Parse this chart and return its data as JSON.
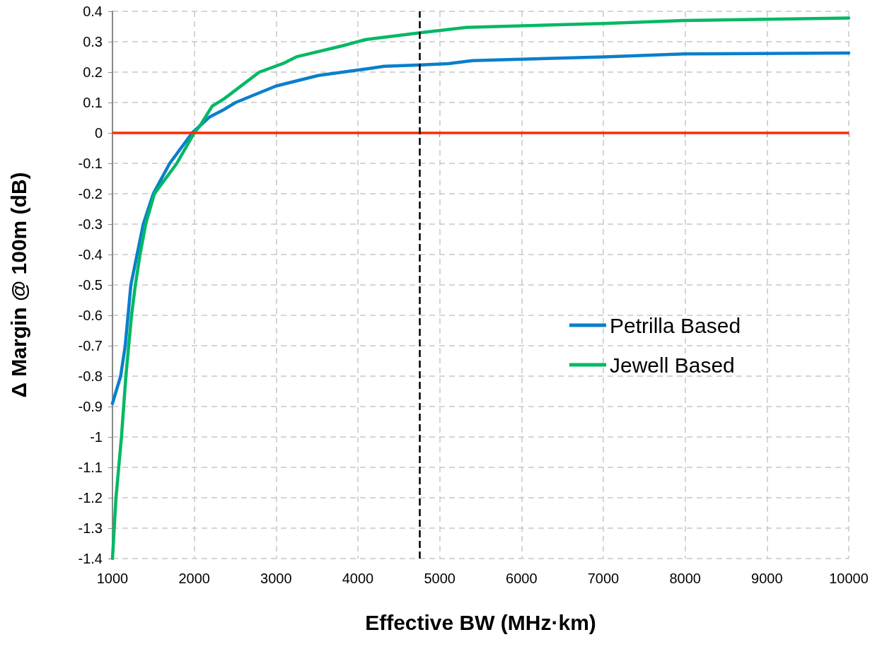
{
  "chart_data": {
    "type": "line",
    "xlabel": "Effective BW (MHz·km)",
    "ylabel": "Δ Margin @ 100m (dB)",
    "xlim": [
      1000,
      10000
    ],
    "xticks": [
      1000,
      2000,
      3000,
      4000,
      5000,
      6000,
      7000,
      8000,
      9000,
      10000
    ],
    "ylim": [
      -1.4,
      0.4
    ],
    "yticks": [
      -1.4,
      -1.3,
      -1.2,
      -1.1,
      -1,
      -0.9,
      -0.8,
      -0.7,
      -0.6,
      -0.5,
      -0.4,
      -0.3,
      -0.2,
      -0.1,
      0,
      0.1,
      0.2,
      0.3,
      0.4
    ],
    "grid": true,
    "legend": "right",
    "marker": "none",
    "line_style": "solid",
    "series": [
      {
        "name": "Petrilla Based",
        "color": "#0a7fcb",
        "x": [
          1000,
          1100,
          1156,
          1225,
          1377,
          1499,
          1700,
          1974,
          2190,
          2363,
          2505,
          2997,
          3516,
          4147,
          4320,
          4787,
          5106,
          5400,
          7000,
          7985,
          10000
        ],
        "values": [
          -0.89,
          -0.8,
          -0.7,
          -0.5,
          -0.3,
          -0.2,
          -0.1,
          0,
          0.053,
          0.077,
          0.1,
          0.154,
          0.189,
          0.212,
          0.219,
          0.224,
          0.228,
          0.238,
          0.25,
          0.26,
          0.263
        ]
      },
      {
        "name": "Jewell Based",
        "color": "#05b865",
        "x": [
          1000,
          1043,
          1110,
          1164,
          1233,
          1280,
          1337,
          1406,
          1513,
          1787,
          2000,
          2075,
          2219,
          2363,
          2795,
          3083,
          3256,
          3804,
          4092,
          4784,
          5326,
          7000,
          7982,
          10000
        ],
        "values": [
          -1.4,
          -1.2,
          -1,
          -0.8,
          -0.6,
          -0.5,
          -0.4,
          -0.3,
          -0.2,
          -0.1,
          0,
          0.026,
          0.088,
          0.112,
          0.2,
          0.228,
          0.251,
          0.286,
          0.307,
          0.33,
          0.347,
          0.36,
          0.37,
          0.378
        ]
      }
    ],
    "ref_lines": [
      {
        "axis": "y",
        "value": 0,
        "color": "#ff2a00",
        "line_style": "solid"
      },
      {
        "axis": "x",
        "value": 4750,
        "color": "#000000",
        "line_style": "dashed"
      }
    ]
  }
}
